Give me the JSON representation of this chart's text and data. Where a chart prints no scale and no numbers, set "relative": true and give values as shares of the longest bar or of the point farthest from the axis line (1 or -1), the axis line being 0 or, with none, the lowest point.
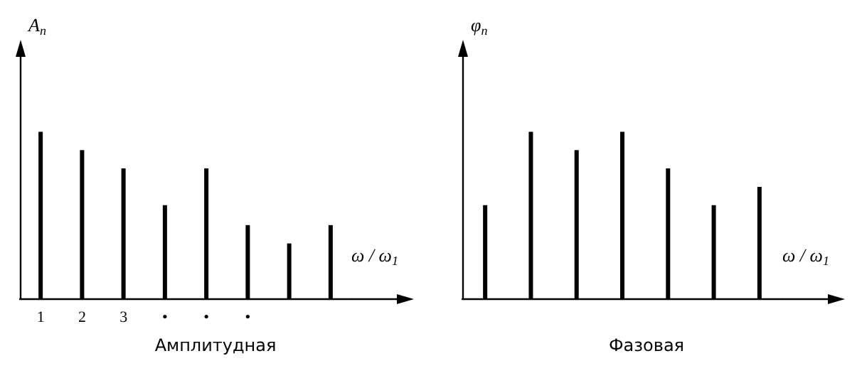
{
  "chart_data": [
    {
      "type": "bar",
      "title": "Амплитудная",
      "xlabel": "ω / ω$_{1}$",
      "ylabel": "A$_{n}$",
      "relative": true,
      "tick_labels": "x",
      "categories": [
        "1",
        "2",
        "3",
        "•",
        "•",
        "•",
        null,
        null
      ],
      "values": [
        1,
        0.89,
        0.78,
        0.56,
        0.78,
        0.44,
        0.33,
        0.44
      ],
      "color": "#000000"
    },
    {
      "type": "bar",
      "title": "Фазовая",
      "xlabel": "ω / ω$_{1}$",
      "ylabel": "φ$_{n}$",
      "relative": true,
      "tick_labels": false,
      "categories": [
        null,
        null,
        null,
        null,
        null,
        null,
        null
      ],
      "values": [
        0.56,
        1,
        0.89,
        1,
        0.78,
        0.56,
        0.67
      ],
      "color": "#000000"
    }
  ]
}
